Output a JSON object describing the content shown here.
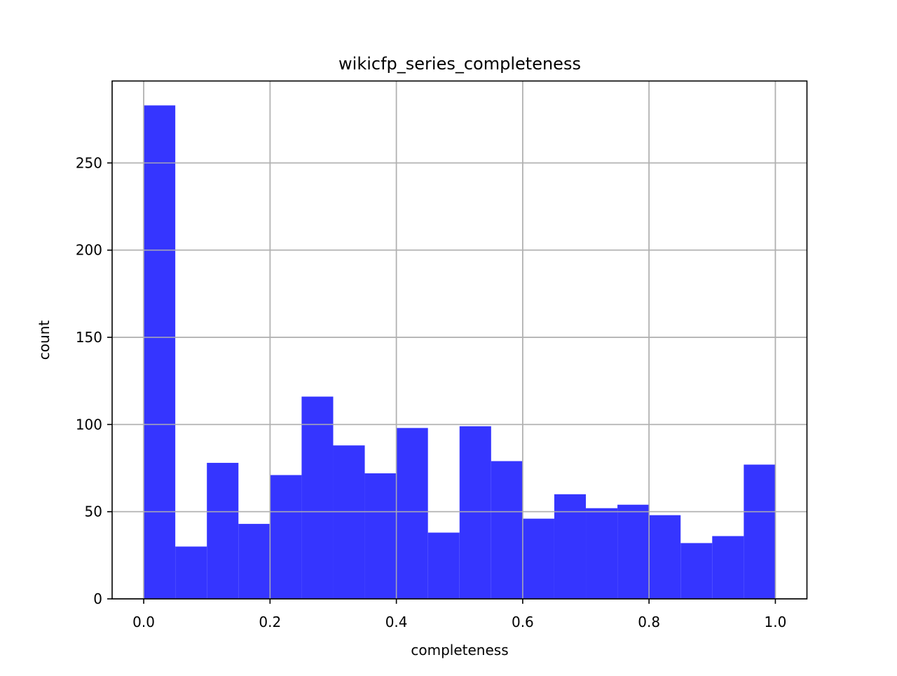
{
  "chart_data": {
    "type": "bar",
    "title": "wikicfp_series_completeness",
    "xlabel": "completeness",
    "ylabel": "count",
    "xlim": [
      -0.05,
      1.05
    ],
    "ylim": [
      0,
      297
    ],
    "bin_edges": [
      0.0,
      0.05,
      0.1,
      0.15,
      0.2,
      0.25,
      0.3,
      0.35,
      0.4,
      0.45,
      0.5,
      0.55,
      0.6,
      0.65,
      0.7,
      0.75,
      0.8,
      0.85,
      0.9,
      0.95,
      1.0
    ],
    "values": [
      283,
      30,
      78,
      43,
      71,
      116,
      88,
      72,
      98,
      38,
      99,
      79,
      46,
      60,
      52,
      54,
      48,
      32,
      36,
      77
    ],
    "x_ticks": [
      0.0,
      0.2,
      0.4,
      0.6,
      0.8,
      1.0
    ],
    "x_tick_labels": [
      "0.0",
      "0.2",
      "0.4",
      "0.6",
      "0.8",
      "1.0"
    ],
    "y_ticks": [
      0,
      50,
      100,
      150,
      200,
      250
    ],
    "y_tick_labels": [
      "0",
      "50",
      "100",
      "150",
      "200",
      "250"
    ],
    "grid": true,
    "bar_color": "#3535ff",
    "grid_color": "#b0b0b0"
  }
}
